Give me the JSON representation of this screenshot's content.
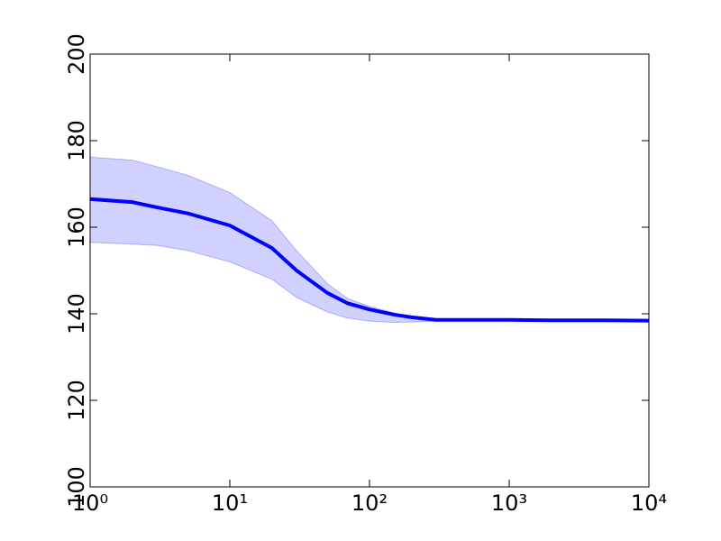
{
  "chart_data": {
    "type": "line",
    "xscale": "log",
    "x": [
      1,
      2,
      3,
      5,
      10,
      20,
      30,
      50,
      70,
      100,
      150,
      200,
      300,
      500,
      1000,
      2000,
      5000,
      10000
    ],
    "series": [
      {
        "color": "#0000ff",
        "band_color": "#0000ff",
        "values": [
          166.5,
          165.8,
          164.6,
          163.2,
          160.4,
          155.2,
          150,
          144.8,
          142.4,
          141,
          139.8,
          139.2,
          138.6,
          138.6,
          138.6,
          138.5,
          138.5,
          138.4
        ],
        "upper": [
          176.2,
          175.5,
          174,
          172,
          168,
          161.5,
          154.6,
          146.9,
          143.5,
          141.7,
          140.2,
          139.4,
          138.8,
          138.7,
          138.7,
          138.6,
          138.6,
          138.5
        ],
        "lower": [
          156.5,
          156.1,
          155.8,
          154.6,
          152,
          148,
          143.8,
          140.4,
          139,
          138.3,
          138,
          138.1,
          138.3,
          138.4,
          138.4,
          138.4,
          138.3,
          138.2
        ]
      }
    ],
    "xlim": [
      1,
      10000
    ],
    "xticks": [
      {
        "value": 1,
        "label": "10⁰"
      },
      {
        "value": 10,
        "label": "10¹"
      },
      {
        "value": 100,
        "label": "10²"
      },
      {
        "value": 1000,
        "label": "10³"
      },
      {
        "value": 10000,
        "label": "10⁴"
      }
    ],
    "ylim": [
      100,
      200
    ],
    "yticks": [
      100,
      120,
      140,
      160,
      180,
      200
    ]
  }
}
